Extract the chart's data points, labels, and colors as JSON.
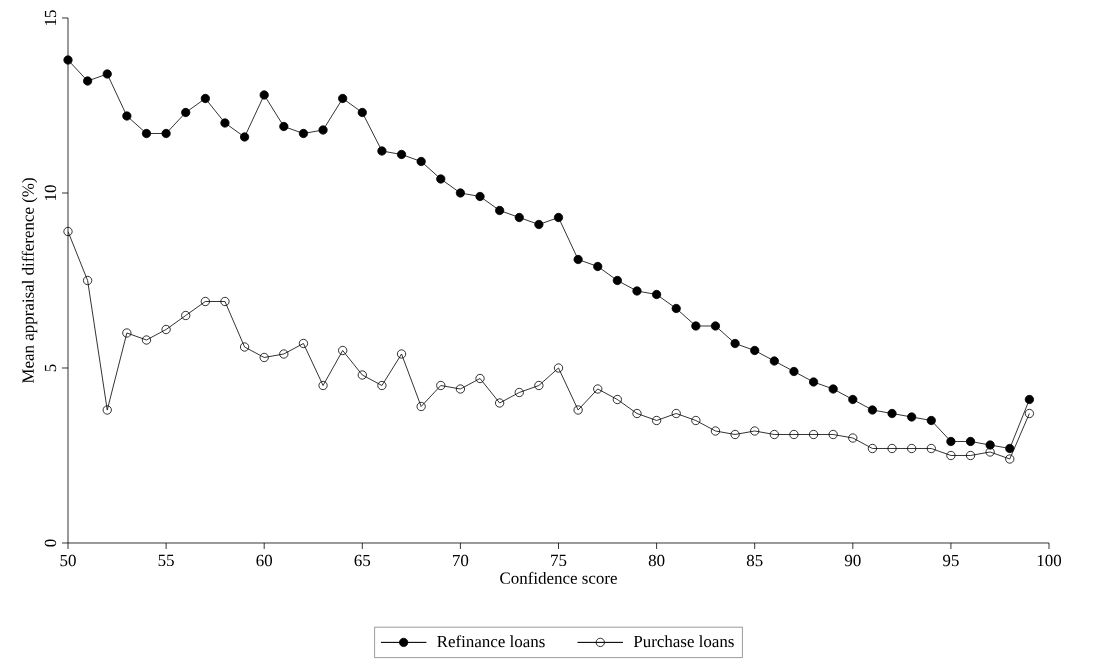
{
  "chart_data": {
    "type": "line",
    "xlabel": "Confidence score",
    "ylabel": "Mean appraisal difference (%)",
    "xlim": [
      50,
      100
    ],
    "xticks": [
      50,
      55,
      60,
      65,
      70,
      75,
      80,
      85,
      90,
      95,
      100
    ],
    "ylim": [
      0,
      15
    ],
    "yticks": [
      0,
      5,
      10,
      15
    ],
    "grid": false,
    "legend": "bottom",
    "line_style": "solid",
    "x": [
      50,
      51,
      52,
      53,
      54,
      55,
      56,
      57,
      58,
      59,
      60,
      61,
      62,
      63,
      64,
      65,
      66,
      67,
      68,
      69,
      70,
      71,
      72,
      73,
      74,
      75,
      76,
      77,
      78,
      79,
      80,
      81,
      82,
      83,
      84,
      85,
      86,
      87,
      88,
      89,
      90,
      91,
      92,
      93,
      94,
      95,
      96,
      97,
      98,
      99
    ],
    "series": [
      {
        "name": "Refinance loans",
        "color": "#000000",
        "marker": "circle",
        "values": [
          13.8,
          13.2,
          13.4,
          12.2,
          11.7,
          11.7,
          12.3,
          12.7,
          12.0,
          11.6,
          12.8,
          11.9,
          11.7,
          11.8,
          12.7,
          12.3,
          11.2,
          11.1,
          10.9,
          10.4,
          10.0,
          9.9,
          9.5,
          9.3,
          9.1,
          9.3,
          8.1,
          7.9,
          7.5,
          7.2,
          7.1,
          6.7,
          6.2,
          6.2,
          5.7,
          5.5,
          5.2,
          4.9,
          4.6,
          4.4,
          4.1,
          3.8,
          3.7,
          3.6,
          3.5,
          2.9,
          2.9,
          2.8,
          2.7,
          4.1
        ]
      },
      {
        "name": "Purchase loans",
        "color": "#000000",
        "marker": "open circle",
        "values": [
          8.9,
          7.5,
          3.8,
          6.0,
          5.8,
          6.1,
          6.5,
          6.9,
          6.9,
          5.6,
          5.3,
          5.4,
          5.7,
          4.5,
          5.5,
          4.8,
          4.5,
          5.4,
          3.9,
          4.5,
          4.4,
          4.7,
          4.0,
          4.3,
          4.5,
          5.0,
          3.8,
          4.4,
          4.1,
          3.7,
          3.5,
          3.7,
          3.5,
          3.2,
          3.1,
          3.2,
          3.1,
          3.1,
          3.1,
          3.1,
          3.0,
          2.7,
          2.7,
          2.7,
          2.7,
          2.5,
          2.5,
          2.6,
          2.4,
          3.7
        ]
      }
    ]
  }
}
